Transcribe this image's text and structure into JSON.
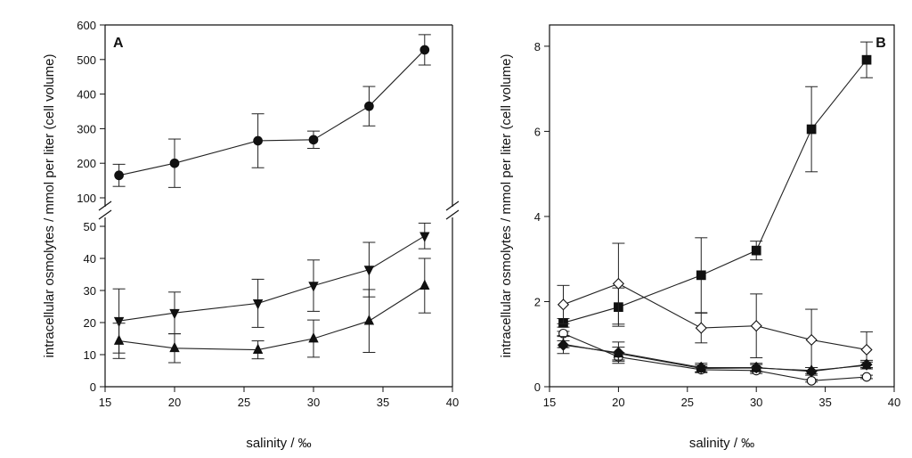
{
  "chart_data": [
    {
      "type": "line",
      "panel_label": "A",
      "xlabel": "salinity / ‰",
      "ylabel": "intracellular osmolytes / mmol per liter (cell volume)",
      "xlim": [
        15,
        40
      ],
      "xticks": [
        "15",
        "20",
        "25",
        "30",
        "35",
        "40"
      ],
      "broken_axis": true,
      "upper_ylim": [
        100,
        600
      ],
      "upper_yticks": [
        "100",
        "200",
        "300",
        "400",
        "500",
        "600"
      ],
      "lower_ylim": [
        0,
        50
      ],
      "lower_yticks": [
        "0",
        "10",
        "20",
        "30",
        "40",
        "50"
      ],
      "x": [
        16,
        20,
        26,
        30,
        34,
        38
      ],
      "series": [
        {
          "name": "filled circle",
          "marker": "circle-filled",
          "segment": "upper",
          "values": [
            165,
            200,
            265,
            268,
            365,
            528
          ],
          "err": [
            32,
            70,
            78,
            25,
            57,
            44
          ]
        },
        {
          "name": "filled down-triangle",
          "marker": "triangle-down-filled",
          "segment": "lower",
          "values": [
            20.5,
            23,
            26,
            31.5,
            36.5,
            47
          ],
          "err": [
            10,
            6.5,
            7.5,
            8,
            8.5,
            4
          ]
        },
        {
          "name": "filled up-triangle",
          "marker": "triangle-up-filled",
          "segment": "lower",
          "values": [
            14.3,
            12,
            11.5,
            15,
            20.5,
            31.5
          ],
          "err": [
            5.5,
            4.5,
            2.8,
            5.8,
            9.8,
            8.5
          ]
        }
      ]
    },
    {
      "type": "line",
      "panel_label": "B",
      "xlabel": "salinity / ‰",
      "ylabel": "intracellular osmolytes / mmol per liter (cell volume)",
      "xlim": [
        15,
        40
      ],
      "xticks": [
        "15",
        "20",
        "25",
        "30",
        "35",
        "40"
      ],
      "ylim": [
        0,
        8.5
      ],
      "yticks": [
        "0",
        "2",
        "4",
        "6",
        "8"
      ],
      "x": [
        16,
        20,
        26,
        30,
        34,
        38
      ],
      "series": [
        {
          "name": "filled square",
          "marker": "square-filled",
          "values": [
            1.5,
            1.87,
            2.62,
            3.2,
            6.05,
            7.68
          ],
          "err": [
            0.1,
            0.45,
            0.88,
            0.22,
            1.0,
            0.42
          ]
        },
        {
          "name": "open diamond",
          "marker": "diamond-open",
          "values": [
            1.93,
            2.42,
            1.38,
            1.43,
            1.1,
            0.87
          ],
          "err": [
            0.45,
            0.95,
            0.35,
            0.75,
            0.72,
            0.42
          ]
        },
        {
          "name": "open circle",
          "marker": "circle-open",
          "values": [
            1.25,
            0.7,
            0.4,
            0.38,
            0.14,
            0.23
          ],
          "err": [
            0.05,
            0.1,
            0.07,
            0.07,
            0.03,
            0.04
          ]
        },
        {
          "name": "filled diamond",
          "marker": "diamond-filled",
          "values": [
            0.98,
            0.8,
            0.45,
            0.45,
            0.36,
            0.52
          ],
          "err": [
            0.2,
            0.25,
            0.1,
            0.1,
            0.09,
            0.1
          ]
        },
        {
          "name": "filled up-triangle",
          "marker": "triangle-up-filled",
          "values": [
            1.0,
            0.78,
            0.43,
            0.44,
            0.38,
            0.5
          ],
          "err": [
            0.08,
            0.15,
            0.08,
            0.08,
            0.07,
            0.08
          ]
        }
      ]
    }
  ]
}
